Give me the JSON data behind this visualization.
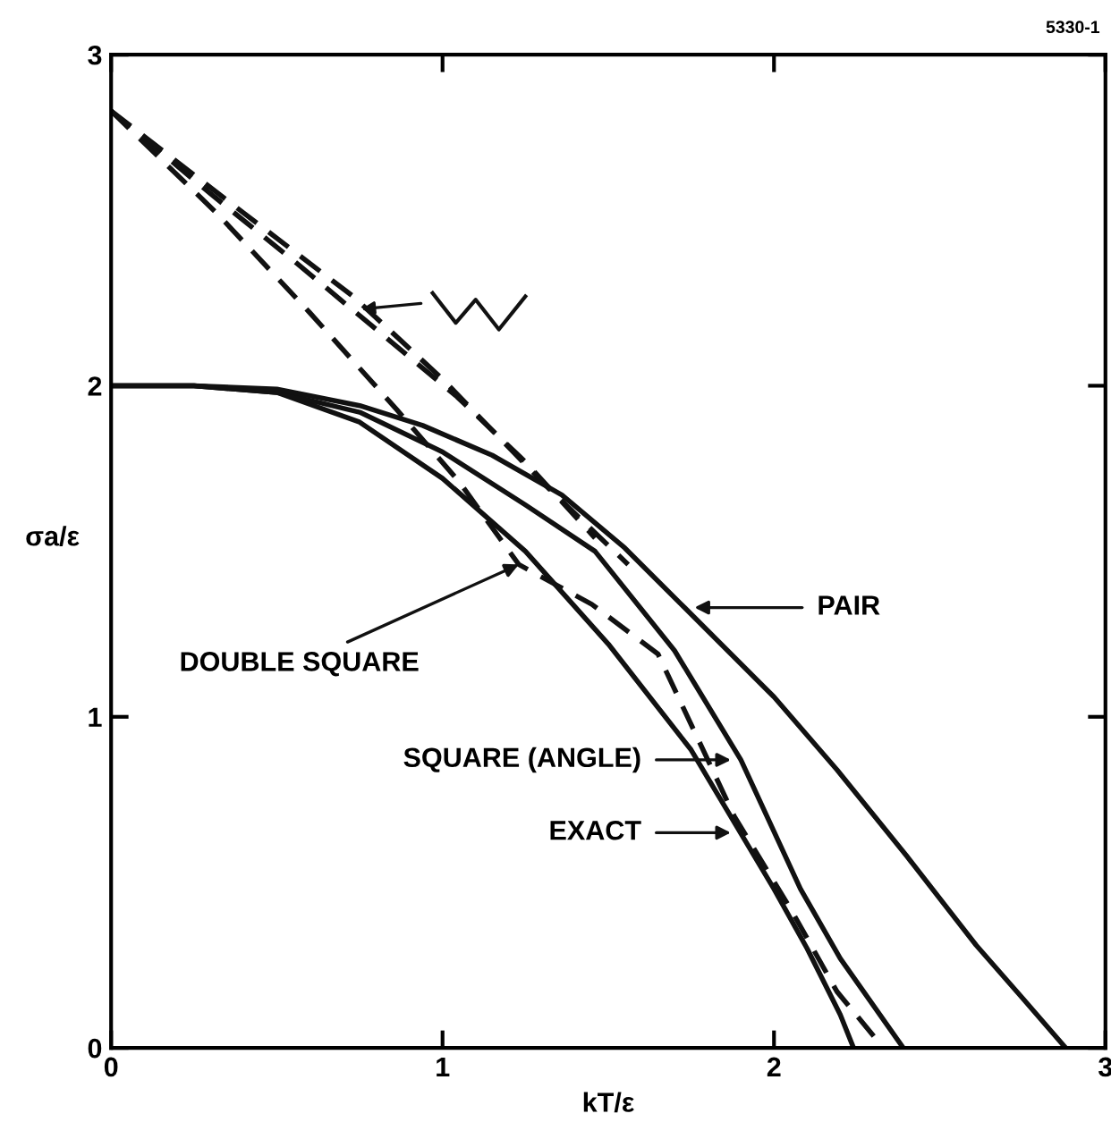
{
  "chart_data": {
    "type": "line",
    "xlabel": "kT/ε",
    "ylabel": "σa/ε",
    "xlim": [
      0,
      3
    ],
    "ylim": [
      0,
      3
    ],
    "xticks": [
      0,
      1,
      2,
      3
    ],
    "yticks": [
      0,
      1,
      2,
      3
    ],
    "grid": false,
    "legend": false,
    "marker": "none",
    "series": [
      {
        "color": "#111111",
        "line_style": "solid",
        "x": [
          0,
          0.25,
          0.5,
          0.75,
          1.0,
          1.25,
          1.5,
          1.75,
          2.0,
          2.1,
          2.2,
          2.24
        ],
        "values": [
          2.0,
          2.0,
          1.98,
          1.89,
          1.72,
          1.5,
          1.22,
          0.9,
          0.48,
          0.3,
          0.1,
          0
        ]
      },
      {
        "color": "#111111",
        "line_style": "solid",
        "x": [
          0,
          0.25,
          0.5,
          0.75,
          1.0,
          1.25,
          1.46,
          1.7,
          1.9,
          2.08,
          2.2,
          2.39
        ],
        "values": [
          2.0,
          2.0,
          1.98,
          1.92,
          1.8,
          1.64,
          1.5,
          1.2,
          0.87,
          0.48,
          0.27,
          0
        ]
      },
      {
        "color": "#111111",
        "line_style": "solid",
        "x": [
          0,
          0.25,
          0.5,
          0.75,
          0.94,
          1.15,
          1.36,
          1.55,
          1.73,
          2.0,
          2.19,
          2.4,
          2.61,
          2.75,
          2.88
        ],
        "values": [
          2.0,
          2.0,
          1.99,
          1.94,
          1.88,
          1.79,
          1.67,
          1.51,
          1.33,
          1.06,
          0.84,
          0.58,
          0.31,
          0.15,
          0
        ]
      },
      {
        "color": "#111111",
        "line_style": "dashed",
        "x": [
          0,
          0.32,
          0.6,
          0.86,
          1.05,
          1.23,
          1.45,
          1.65,
          1.88,
          2.05,
          2.19,
          2.33
        ],
        "values": [
          2.83,
          2.52,
          2.22,
          1.93,
          1.71,
          1.46,
          1.34,
          1.19,
          0.7,
          0.42,
          0.17,
          0
        ]
      },
      {
        "color": "#111111",
        "line_style": "dashed",
        "x": [
          0,
          0.3,
          0.56,
          0.8,
          1.04,
          1.25,
          1.46
        ],
        "values": [
          2.83,
          2.58,
          2.37,
          2.17,
          1.97,
          1.77,
          1.54
        ]
      },
      {
        "color": "#111111",
        "line_style": "dashed",
        "x": [
          0,
          0.35,
          0.73,
          1.0,
          1.32,
          1.56
        ],
        "values": [
          2.83,
          2.56,
          2.27,
          2.02,
          1.69,
          1.46
        ]
      }
    ],
    "annotations": [
      "5330-1",
      {
        "text": "DOUBLE SQUARE",
        "x": 1.23,
        "y": 1.46
      },
      "PAIR",
      "SQUARE (ANGLE)",
      "EXACT"
    ]
  }
}
